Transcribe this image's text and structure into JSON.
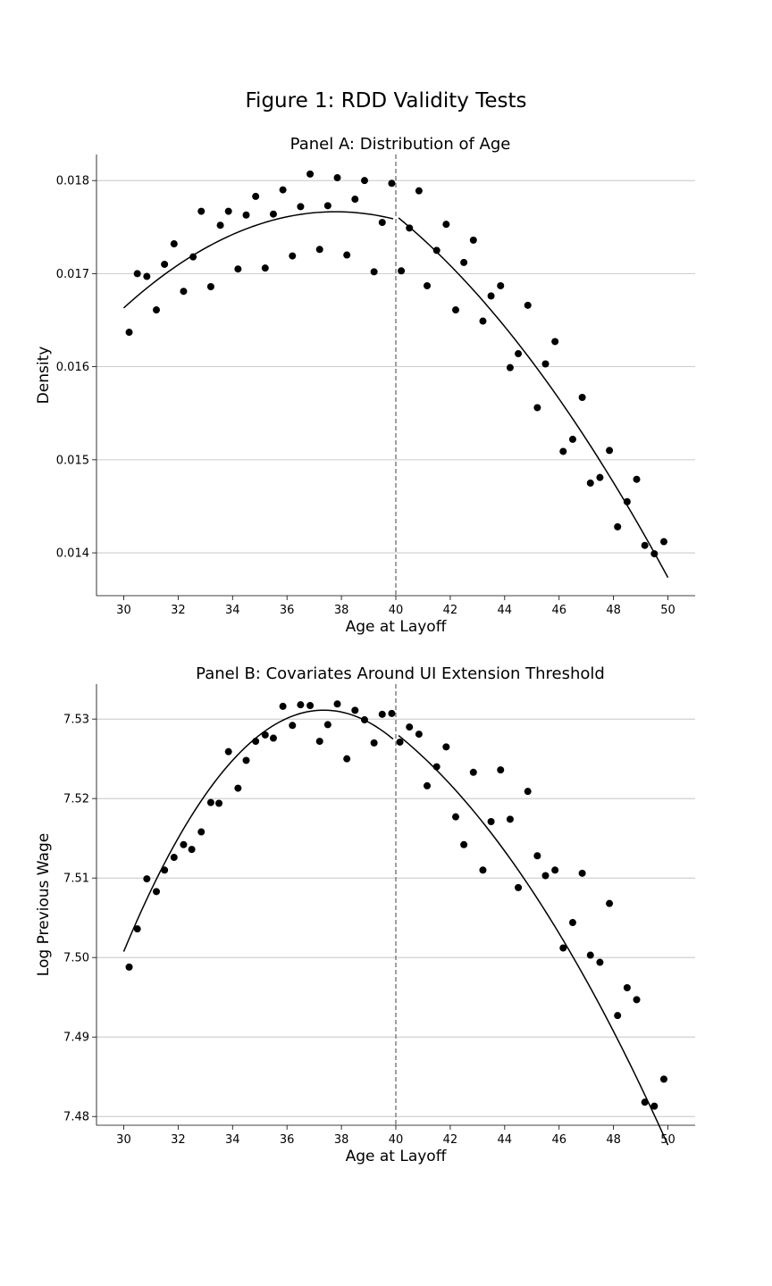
{
  "figure_title": "Figure 1: RDD Validity Tests",
  "chart_data": [
    {
      "type": "scatter",
      "title": "Panel A: Distribution of Age",
      "xlabel": "Age at Layoff",
      "ylabel": "Density",
      "xlim": [
        29,
        51
      ],
      "ylim": [
        0.01354,
        0.01828
      ],
      "xticks": [
        30,
        32,
        34,
        36,
        38,
        40,
        42,
        44,
        46,
        48,
        50
      ],
      "yticks": [
        0.014,
        0.015,
        0.016,
        0.017,
        0.018
      ],
      "ytick_labels": [
        "0.014",
        "0.015",
        "0.016",
        "0.017",
        "0.018"
      ],
      "grid": "y",
      "cutoff": 40,
      "points": [
        [
          30.2,
          0.01637
        ],
        [
          30.5,
          0.017
        ],
        [
          30.85,
          0.01697
        ],
        [
          31.2,
          0.01661
        ],
        [
          31.5,
          0.0171
        ],
        [
          31.85,
          0.01732
        ],
        [
          32.2,
          0.01681
        ],
        [
          32.55,
          0.01718
        ],
        [
          32.85,
          0.01767
        ],
        [
          33.2,
          0.01686
        ],
        [
          33.55,
          0.01752
        ],
        [
          33.85,
          0.01767
        ],
        [
          34.2,
          0.01705
        ],
        [
          34.5,
          0.01763
        ],
        [
          34.85,
          0.01783
        ],
        [
          35.2,
          0.01706
        ],
        [
          35.5,
          0.01764
        ],
        [
          35.85,
          0.0179
        ],
        [
          36.2,
          0.01719
        ],
        [
          36.5,
          0.01772
        ],
        [
          36.85,
          0.01807
        ],
        [
          37.2,
          0.01726
        ],
        [
          37.5,
          0.01773
        ],
        [
          37.85,
          0.01803
        ],
        [
          38.2,
          0.0172
        ],
        [
          38.5,
          0.0178
        ],
        [
          38.85,
          0.018
        ],
        [
          39.2,
          0.01702
        ],
        [
          39.5,
          0.01755
        ],
        [
          39.85,
          0.01797
        ],
        [
          40.2,
          0.01703
        ],
        [
          40.5,
          0.01749
        ],
        [
          40.85,
          0.01789
        ],
        [
          41.15,
          0.01687
        ],
        [
          41.5,
          0.01725
        ],
        [
          41.85,
          0.01753
        ],
        [
          42.2,
          0.01661
        ],
        [
          42.5,
          0.01712
        ],
        [
          42.85,
          0.01736
        ],
        [
          43.2,
          0.01649
        ],
        [
          43.5,
          0.01676
        ],
        [
          43.85,
          0.01687
        ],
        [
          44.2,
          0.01599
        ],
        [
          44.5,
          0.01614
        ],
        [
          44.85,
          0.01666
        ],
        [
          45.2,
          0.01556
        ],
        [
          45.5,
          0.01603
        ],
        [
          45.85,
          0.01627
        ],
        [
          46.15,
          0.01509
        ],
        [
          46.5,
          0.01522
        ],
        [
          46.85,
          0.01567
        ],
        [
          47.15,
          0.01475
        ],
        [
          47.5,
          0.01481
        ],
        [
          47.85,
          0.0151
        ],
        [
          48.15,
          0.01428
        ],
        [
          48.5,
          0.01455
        ],
        [
          48.85,
          0.01479
        ],
        [
          49.15,
          0.01408
        ],
        [
          49.5,
          0.01399
        ],
        [
          49.85,
          0.01412
        ]
      ],
      "fit_left": [
        [
          30.0,
          0.01662
        ],
        [
          32.0,
          0.01712
        ],
        [
          34.0,
          0.01741
        ],
        [
          36.0,
          0.0176
        ],
        [
          38.0,
          0.01767
        ],
        [
          39.9,
          0.01759
        ]
      ],
      "fit_right": [
        [
          40.1,
          0.01758
        ],
        [
          42.0,
          0.0171
        ],
        [
          44.0,
          0.01648
        ],
        [
          46.0,
          0.01562
        ],
        [
          48.0,
          0.01472
        ],
        [
          50.0,
          0.01376
        ]
      ]
    },
    {
      "type": "scatter",
      "title": "Panel B: Covariates Around UI Extension Threshold",
      "xlabel": "Age at Layoff",
      "ylabel": "Log Previous Wage",
      "xlim": [
        29,
        51
      ],
      "ylim": [
        7.4789,
        7.5344
      ],
      "xticks": [
        30,
        32,
        34,
        36,
        38,
        40,
        42,
        44,
        46,
        48,
        50
      ],
      "yticks": [
        7.48,
        7.49,
        7.5,
        7.51,
        7.52,
        7.53
      ],
      "ytick_labels": [
        "7.48",
        "7.49",
        "7.50",
        "7.51",
        "7.52",
        "7.53"
      ],
      "grid": "y",
      "cutoff": 40,
      "points": [
        [
          30.2,
          7.4988
        ],
        [
          30.5,
          7.5036
        ],
        [
          30.85,
          7.5099
        ],
        [
          31.2,
          7.5083
        ],
        [
          31.5,
          7.511
        ],
        [
          31.85,
          7.5126
        ],
        [
          32.2,
          7.5142
        ],
        [
          32.5,
          7.5136
        ],
        [
          32.85,
          7.5158
        ],
        [
          33.2,
          7.5195
        ],
        [
          33.5,
          7.5194
        ],
        [
          33.85,
          7.5259
        ],
        [
          34.2,
          7.5213
        ],
        [
          34.5,
          7.5248
        ],
        [
          34.85,
          7.5272
        ],
        [
          35.2,
          7.528
        ],
        [
          35.5,
          7.5276
        ],
        [
          35.85,
          7.5316
        ],
        [
          36.2,
          7.5292
        ],
        [
          36.5,
          7.5318
        ],
        [
          36.85,
          7.5317
        ],
        [
          37.2,
          7.5272
        ],
        [
          37.5,
          7.5293
        ],
        [
          37.85,
          7.5319
        ],
        [
          38.2,
          7.525
        ],
        [
          38.5,
          7.5311
        ],
        [
          38.85,
          7.5299
        ],
        [
          39.2,
          7.527
        ],
        [
          39.5,
          7.5306
        ],
        [
          39.85,
          7.5307
        ],
        [
          40.15,
          7.5271
        ],
        [
          40.5,
          7.529
        ],
        [
          40.85,
          7.5281
        ],
        [
          41.15,
          7.5216
        ],
        [
          41.5,
          7.524
        ],
        [
          41.85,
          7.5265
        ],
        [
          42.2,
          7.5177
        ],
        [
          42.5,
          7.5142
        ],
        [
          42.85,
          7.5233
        ],
        [
          43.2,
          7.511
        ],
        [
          43.5,
          7.5171
        ],
        [
          43.85,
          7.5236
        ],
        [
          44.2,
          7.5174
        ],
        [
          44.5,
          7.5088
        ],
        [
          44.85,
          7.5209
        ],
        [
          45.2,
          7.5128
        ],
        [
          45.5,
          7.5103
        ],
        [
          45.85,
          7.511
        ],
        [
          46.15,
          7.5012
        ],
        [
          46.5,
          7.5044
        ],
        [
          46.85,
          7.5106
        ],
        [
          47.15,
          7.5003
        ],
        [
          47.5,
          7.4994
        ],
        [
          47.85,
          7.5068
        ],
        [
          48.15,
          7.4927
        ],
        [
          48.5,
          7.4962
        ],
        [
          48.85,
          7.4947
        ],
        [
          49.15,
          7.4818
        ],
        [
          49.5,
          7.4813
        ],
        [
          49.85,
          7.4847
        ]
      ],
      "fit_left": [
        [
          30.0,
          7.5
        ],
        [
          31.0,
          7.5083
        ],
        [
          32.0,
          7.5158
        ],
        [
          33.0,
          7.5212
        ],
        [
          34.0,
          7.5253
        ],
        [
          35.0,
          7.528
        ],
        [
          36.0,
          7.5296
        ],
        [
          37.0,
          7.5302
        ],
        [
          38.0,
          7.5303
        ],
        [
          39.0,
          7.5296
        ],
        [
          39.9,
          7.5283
        ]
      ],
      "fit_right": [
        [
          40.1,
          7.5262
        ],
        [
          41.0,
          7.5249
        ],
        [
          42.0,
          7.5226
        ],
        [
          43.0,
          7.5193
        ],
        [
          44.0,
          7.5151
        ],
        [
          45.0,
          7.5098
        ],
        [
          46.0,
          7.5033
        ],
        [
          47.0,
          7.4961
        ],
        [
          48.0,
          7.4878
        ],
        [
          49.0,
          7.478
        ],
        [
          50.0,
          7.4826
        ]
      ]
    }
  ]
}
